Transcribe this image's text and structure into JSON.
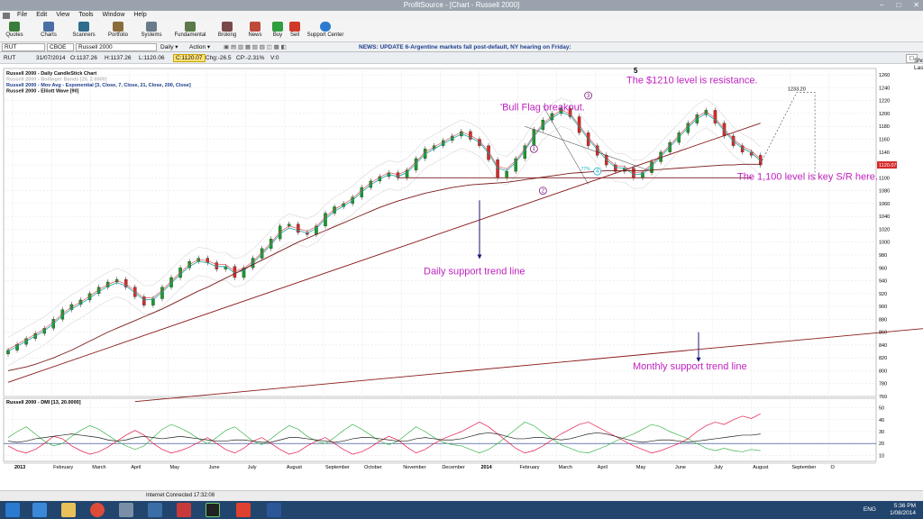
{
  "window": {
    "title": "ProfitSource - [Chart - Russell 2000]"
  },
  "menu": [
    "File",
    "Edit",
    "View",
    "Tools",
    "Window",
    "Help"
  ],
  "toolbar": [
    "Quotes",
    "Charts",
    "Scanners",
    "Portfolio",
    "Systems",
    "Fundamental",
    "Broking",
    "News",
    "Buy",
    "Sell",
    "Support Center"
  ],
  "symbol": {
    "code": "RUT",
    "exchange": "CBOE",
    "name": "Russell 2000",
    "period": "Daily",
    "action": "Action"
  },
  "news": "NEWS: UPDATE 6-Argentine markets fall post-default, NY hearing on Friday:",
  "quote": {
    "date": "31/07/2014",
    "open": "O:1137.26",
    "high": "H:1137.26",
    "low": "L:1120.06",
    "close": "C:1120.07",
    "chg": "Chg:-26.5",
    "cp": "CP:-2.31%",
    "vol": "V:0",
    "show_last": "Show Last"
  },
  "status": {
    "connection": "Internet Connected 17:32:08"
  },
  "taskbar": {
    "lang": "ENG",
    "time": "5:36 PM",
    "date": "1/08/2014"
  },
  "chart_data": {
    "type": "candlestick",
    "main_panel": {
      "legend": [
        "Russell 2000 - Daily CandleStick Chart",
        "Russell 2000 - Bollinger Bands [20, 2.0000]",
        "Russell 2000 - Mov Avg - Exponential [3, Close, 7, Close, 21, Close, 200, Close]",
        "Russell 2000 - Elliott Wave [90]"
      ],
      "ylim": [
        760,
        1270
      ],
      "yticks": [
        760,
        780,
        800,
        820,
        840,
        860,
        880,
        900,
        920,
        940,
        960,
        980,
        1000,
        1020,
        1040,
        1060,
        1080,
        1100,
        1120,
        1140,
        1160,
        1180,
        1200,
        1220,
        1240,
        1260
      ],
      "last_price": "1120.07",
      "target_label": "1233.20",
      "closes": [
        832,
        841,
        850,
        858,
        866,
        880,
        895,
        903,
        910,
        920,
        930,
        938,
        942,
        930,
        915,
        902,
        912,
        930,
        945,
        960,
        970,
        975,
        968,
        958,
        962,
        945,
        960,
        975,
        990,
        1005,
        1025,
        1028,
        1015,
        1012,
        1025,
        1045,
        1055,
        1060,
        1070,
        1085,
        1095,
        1102,
        1108,
        1100,
        1112,
        1130,
        1145,
        1150,
        1158,
        1165,
        1172,
        1160,
        1150,
        1128,
        1100,
        1110,
        1130,
        1150,
        1175,
        1190,
        1200,
        1208,
        1195,
        1170,
        1150,
        1135,
        1120,
        1110,
        1115,
        1100,
        1108,
        1125,
        1140,
        1155,
        1170,
        1185,
        1198,
        1205,
        1185,
        1165,
        1150,
        1140,
        1135,
        1120
      ],
      "ema_values": [
        830,
        838,
        846,
        854,
        862,
        873,
        886,
        896,
        904,
        913,
        923,
        931,
        937,
        932,
        921,
        910,
        911,
        922,
        936,
        950,
        962,
        970,
        968,
        962,
        962,
        952,
        956,
        967,
        981,
        996,
        1013,
        1022,
        1018,
        1014,
        1021,
        1036,
        1048,
        1056,
        1065,
        1078,
        1089,
        1098,
        1105,
        1102,
        1108,
        1122,
        1137,
        1145,
        1153,
        1161,
        1168,
        1163,
        1155,
        1138,
        1115,
        1111,
        1124,
        1142,
        1164,
        1181,
        1193,
        1202,
        1197,
        1179,
        1160,
        1144,
        1128,
        1116,
        1115,
        1105,
        1106,
        1118,
        1133,
        1148,
        1163,
        1178,
        1192,
        1200,
        1190,
        1173,
        1157,
        1146,
        1139,
        1126
      ],
      "ma200_values": [
        800,
        803,
        806,
        810,
        815,
        820,
        826,
        832,
        839,
        846,
        853,
        860,
        866,
        872,
        878,
        884,
        890,
        896,
        903,
        910,
        917,
        924,
        930,
        937,
        944,
        951,
        958,
        965,
        972,
        979,
        986,
        993,
        1000,
        1006,
        1012,
        1018,
        1024,
        1030,
        1036,
        1042,
        1048,
        1054,
        1059,
        1064,
        1068,
        1072,
        1076,
        1079,
        1082,
        1085,
        1087,
        1089,
        1090,
        1091,
        1092,
        1093,
        1095,
        1097,
        1099,
        1101,
        1103,
        1105,
        1107,
        1108,
        1109,
        1110,
        1111,
        1111,
        1111,
        1111,
        1111,
        1112,
        1113,
        1114,
        1115,
        1116,
        1117,
        1118,
        1119,
        1120,
        1120,
        1121,
        1121,
        1121
      ],
      "support_daily": [
        {
          "x": 0,
          "y": 782
        },
        {
          "x": 83,
          "y": 1185
        }
      ],
      "support_monthly": [
        {
          "x": 14,
          "y": 752
        },
        {
          "x": 112,
          "y": 880
        }
      ],
      "support_level": 1100,
      "wave_labels": [
        {
          "t": "1",
          "x": 58,
          "y": 1145
        },
        {
          "t": "2",
          "x": 59,
          "y": 1080
        },
        {
          "t": "3",
          "x": 64,
          "y": 1228
        },
        {
          "t": "4",
          "x": 65,
          "y": 1110
        },
        {
          "t": "5",
          "x": 69,
          "y": 1263
        }
      ],
      "annotations": [
        "'Bull Flag breakout.",
        "The $1210 level is resistance.",
        "The 1,100 level is key S/R here.",
        "Daily support trend line",
        "Monthly support trend line"
      ],
      "fib_label": "77%"
    },
    "dmi_panel": {
      "title": "Russell 2000 - DMI [13, 20.0000]",
      "ylim": [
        5,
        55
      ],
      "yticks": [
        10,
        20,
        30,
        40,
        50
      ],
      "series": [
        {
          "name": "+DI",
          "color": "#3cb44b",
          "values": [
            25,
            30,
            34,
            28,
            22,
            18,
            20,
            26,
            31,
            35,
            32,
            27,
            22,
            18,
            15,
            18,
            25,
            32,
            36,
            33,
            29,
            24,
            20,
            25,
            31,
            34,
            28,
            22,
            19,
            24,
            30,
            35,
            32,
            26,
            22,
            20,
            25,
            31,
            36,
            32,
            27,
            22,
            19,
            22,
            28,
            34,
            30,
            25,
            21,
            19,
            18,
            15,
            12,
            15,
            20,
            26,
            32,
            38,
            35,
            29,
            24,
            19,
            16,
            13,
            12,
            15,
            18,
            22,
            25,
            28,
            32,
            36,
            34,
            30,
            27,
            24,
            20,
            16,
            14,
            16,
            14,
            13,
            15,
            14
          ]
        },
        {
          "name": "-DI",
          "color": "#e6194b",
          "values": [
            18,
            14,
            12,
            15,
            20,
            26,
            24,
            18,
            14,
            11,
            13,
            17,
            22,
            27,
            31,
            27,
            20,
            15,
            12,
            14,
            17,
            21,
            25,
            20,
            15,
            12,
            16,
            22,
            25,
            20,
            15,
            11,
            13,
            18,
            22,
            25,
            20,
            15,
            11,
            13,
            17,
            22,
            26,
            23,
            17,
            12,
            15,
            20,
            24,
            27,
            30,
            34,
            38,
            34,
            28,
            22,
            16,
            12,
            14,
            18,
            23,
            28,
            32,
            36,
            38,
            34,
            30,
            26,
            22,
            18,
            15,
            12,
            14,
            17,
            20,
            24,
            30,
            35,
            38,
            36,
            40,
            43,
            41,
            45
          ]
        },
        {
          "name": "ADX",
          "color": "#222222",
          "values": [
            22,
            21,
            22,
            24,
            25,
            26,
            27,
            28,
            27,
            26,
            25,
            23,
            22,
            23,
            25,
            26,
            25,
            24,
            25,
            26,
            25,
            24,
            23,
            22,
            22,
            23,
            23,
            22,
            21,
            21,
            23,
            25,
            25,
            24,
            23,
            22,
            21,
            22,
            24,
            25,
            25,
            24,
            23,
            22,
            22,
            24,
            25,
            24,
            23,
            23,
            24,
            26,
            28,
            29,
            28,
            26,
            24,
            24,
            25,
            25,
            24,
            23,
            24,
            26,
            28,
            29,
            28,
            26,
            24,
            22,
            21,
            22,
            23,
            23,
            22,
            21,
            22,
            23,
            24,
            25,
            26,
            27,
            27,
            28
          ]
        }
      ],
      "threshold": 20
    },
    "x_axis": [
      "2013",
      "February",
      "March",
      "April",
      "May",
      "June",
      "July",
      "August",
      "September",
      "October",
      "November",
      "December",
      "2014",
      "February",
      "March",
      "April",
      "May",
      "June",
      "July",
      "August",
      "September",
      "O"
    ]
  }
}
